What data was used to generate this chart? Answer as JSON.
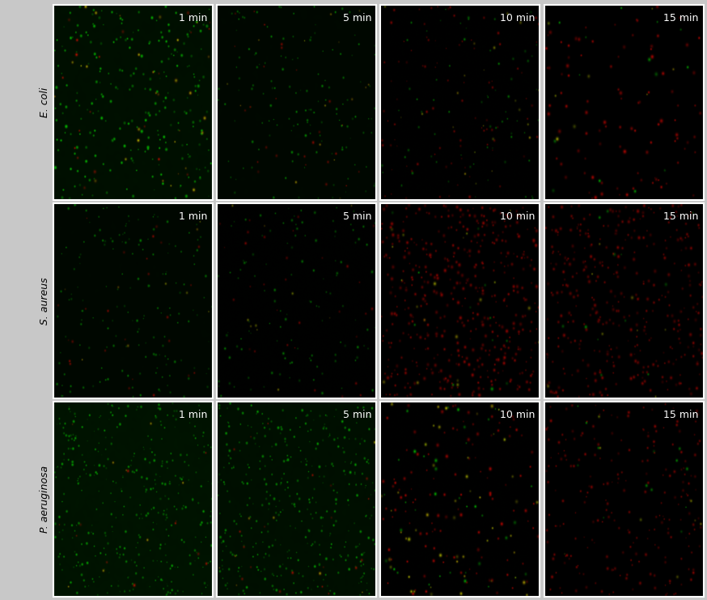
{
  "rows": [
    "E. coli",
    "S. aureus",
    "P. aeruginosa"
  ],
  "cols": [
    "1 min",
    "5 min",
    "10 min",
    "15 min"
  ],
  "time_label_color": "#ffffff",
  "fig_bg": "#c8c8c8",
  "cell_bg": "#ffffff",
  "cell_configs": {
    "E. coli": {
      "1 min": {
        "green": 0.82,
        "red": 0.1,
        "yellow": 0.08,
        "density": 300,
        "blob_size": 2.5,
        "bg_green": 0.08,
        "bg_texture": true,
        "intensity_scale": 0.75
      },
      "5 min": {
        "green": 0.78,
        "red": 0.12,
        "yellow": 0.05,
        "density": 180,
        "blob_size": 2.0,
        "bg_green": 0.04,
        "bg_texture": true,
        "intensity_scale": 0.55
      },
      "10 min": {
        "green": 0.42,
        "red": 0.48,
        "yellow": 0.1,
        "density": 180,
        "blob_size": 2.0,
        "bg_green": 0.02,
        "bg_texture": false,
        "intensity_scale": 0.5
      },
      "15 min": {
        "green": 0.12,
        "red": 0.82,
        "yellow": 0.06,
        "density": 120,
        "blob_size": 2.8,
        "bg_green": 0.01,
        "bg_texture": false,
        "intensity_scale": 0.65
      }
    },
    "S. aureus": {
      "1 min": {
        "green": 0.78,
        "red": 0.18,
        "yellow": 0.04,
        "density": 200,
        "blob_size": 2.0,
        "bg_green": 0.04,
        "bg_texture": true,
        "intensity_scale": 0.55
      },
      "5 min": {
        "green": 0.8,
        "red": 0.15,
        "yellow": 0.05,
        "density": 160,
        "blob_size": 2.0,
        "bg_green": 0.03,
        "bg_texture": false,
        "intensity_scale": 0.5
      },
      "10 min": {
        "green": 0.04,
        "red": 0.93,
        "yellow": 0.03,
        "density": 500,
        "blob_size": 2.5,
        "bg_green": 0.01,
        "bg_texture": false,
        "intensity_scale": 0.55
      },
      "15 min": {
        "green": 0.03,
        "red": 0.95,
        "yellow": 0.02,
        "density": 400,
        "blob_size": 2.5,
        "bg_green": 0.01,
        "bg_texture": false,
        "intensity_scale": 0.5
      }
    },
    "P. aeruginosa": {
      "1 min": {
        "green": 0.95,
        "red": 0.03,
        "yellow": 0.02,
        "density": 400,
        "blob_size": 2.2,
        "bg_green": 0.1,
        "bg_texture": true,
        "intensity_scale": 0.65
      },
      "5 min": {
        "green": 0.92,
        "red": 0.05,
        "yellow": 0.03,
        "density": 420,
        "blob_size": 2.2,
        "bg_green": 0.08,
        "bg_texture": true,
        "intensity_scale": 0.65
      },
      "10 min": {
        "green": 0.18,
        "red": 0.6,
        "yellow": 0.22,
        "density": 200,
        "blob_size": 2.5,
        "bg_green": 0.02,
        "bg_texture": false,
        "intensity_scale": 0.7
      },
      "15 min": {
        "green": 0.05,
        "red": 0.92,
        "yellow": 0.03,
        "density": 250,
        "blob_size": 2.2,
        "bg_green": 0.01,
        "bg_texture": false,
        "intensity_scale": 0.55
      }
    }
  }
}
